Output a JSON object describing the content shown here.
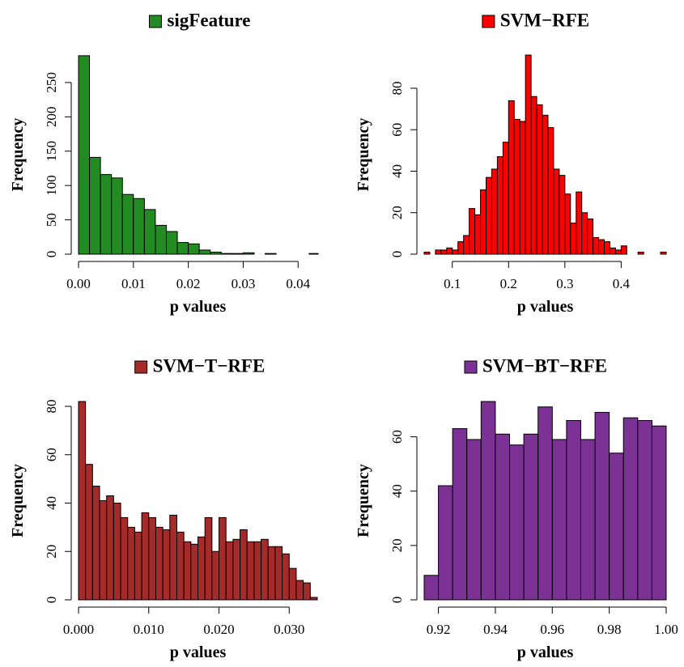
{
  "chart_data": [
    {
      "type": "bar",
      "title": "sigFeature",
      "legend_color": "#228B22",
      "color": "#228B22",
      "xlabel": "p values",
      "ylabel": "Frequency",
      "xlim": [
        0.0,
        0.0435
      ],
      "ylim": [
        0,
        290
      ],
      "xticks": [
        0.0,
        0.01,
        0.02,
        0.03,
        0.04
      ],
      "xtick_labels": [
        "0.00",
        "0.01",
        "0.02",
        "0.03",
        "0.04"
      ],
      "yticks": [
        0,
        50,
        100,
        150,
        200,
        250
      ],
      "ytick_labels": [
        "0",
        "50",
        "100",
        "150",
        "200",
        "250"
      ],
      "bin_start": 0.0,
      "bin_width": 0.002,
      "values": [
        289,
        141,
        116,
        111,
        87,
        81,
        65,
        42,
        33,
        17,
        15,
        6,
        3,
        1,
        1,
        2,
        0,
        1,
        0,
        0,
        0,
        1
      ]
    },
    {
      "type": "bar",
      "title": "SVM−RFE",
      "legend_color": "#FF0000",
      "color": "#FF0000",
      "xlabel": "p values",
      "ylabel": "Frequency",
      "xlim": [
        0.05,
        0.48
      ],
      "ylim": [
        0,
        96
      ],
      "xticks": [
        0.1,
        0.2,
        0.3,
        0.4
      ],
      "xtick_labels": [
        "0.1",
        "0.2",
        "0.3",
        "0.4"
      ],
      "yticks": [
        0,
        20,
        40,
        60,
        80
      ],
      "ytick_labels": [
        "0",
        "20",
        "40",
        "60",
        "80"
      ],
      "bin_start": 0.05,
      "bin_width": 0.01,
      "values": [
        1,
        0,
        2,
        2,
        3,
        2,
        6,
        9,
        22,
        19,
        31,
        37,
        41,
        47,
        54,
        74,
        65,
        64,
        96,
        76,
        72,
        67,
        61,
        41,
        38,
        29,
        15,
        30,
        20,
        17,
        8,
        7,
        6,
        3,
        2,
        4,
        0,
        0,
        1,
        0,
        0,
        0,
        1
      ]
    },
    {
      "type": "bar",
      "title": "SVM−T−RFE",
      "legend_color": "#A52A2A",
      "color": "#A52A2A",
      "xlabel": "p values",
      "ylabel": "Frequency",
      "xlim": [
        0.0,
        0.034
      ],
      "ylim": [
        0,
        82
      ],
      "xticks": [
        0.0,
        0.01,
        0.02,
        0.03
      ],
      "xtick_labels": [
        "0.000",
        "0.010",
        "0.020",
        "0.030"
      ],
      "yticks": [
        0,
        20,
        40,
        60,
        80
      ],
      "ytick_labels": [
        "0",
        "20",
        "40",
        "60",
        "80"
      ],
      "bin_start": 0.0,
      "bin_width": 0.001,
      "values": [
        82,
        56,
        47,
        41,
        43,
        40,
        34,
        30,
        28,
        36,
        34,
        30,
        29,
        35,
        28,
        24,
        23,
        26,
        34,
        20,
        34,
        24,
        25,
        29,
        24,
        24,
        25,
        22,
        22,
        19,
        13,
        8,
        7,
        1
      ]
    },
    {
      "type": "bar",
      "title": "SVM−BT−RFE",
      "legend_color": "#7B3294",
      "color": "#7B3294",
      "xlabel": "p values",
      "ylabel": "Frequency",
      "xlim": [
        0.915,
        1.0
      ],
      "ylim": [
        0,
        73
      ],
      "xticks": [
        0.92,
        0.94,
        0.96,
        0.98,
        1.0
      ],
      "xtick_labels": [
        "0.92",
        "0.94",
        "0.96",
        "0.98",
        "1.00"
      ],
      "yticks": [
        0,
        20,
        40,
        60
      ],
      "ytick_labels": [
        "0",
        "20",
        "40",
        "60"
      ],
      "bin_start": 0.915,
      "bin_width": 0.005,
      "values": [
        9,
        42,
        63,
        59,
        73,
        61,
        57,
        61,
        71,
        59,
        66,
        59,
        69,
        54,
        67,
        66,
        64
      ]
    }
  ]
}
